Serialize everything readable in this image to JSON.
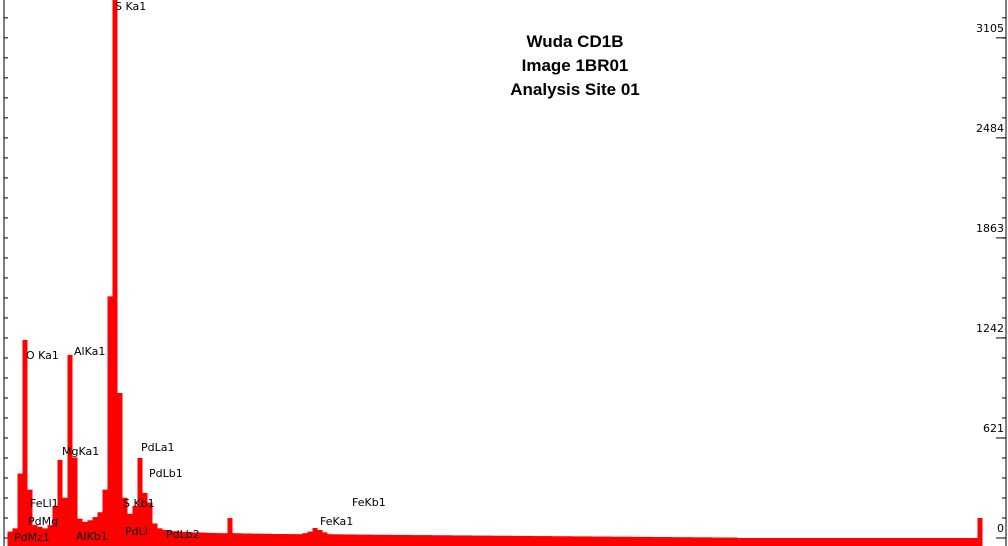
{
  "chart_data": {
    "type": "spectrum",
    "title_lines": [
      "Wuda CD1B",
      "Image 1BR01",
      "Analysis Site 01"
    ],
    "color": "#ff0000",
    "values": [
      40,
      60,
      400,
      1230,
      300,
      80,
      70,
      60,
      80,
      200,
      485,
      250,
      1137,
      500,
      120,
      100,
      110,
      130,
      160,
      300,
      1500,
      3340,
      900,
      250,
      150,
      200,
      497,
      280,
      220,
      90,
      60,
      50,
      45,
      42,
      40,
      38,
      36,
      35,
      34,
      33,
      32,
      31,
      30,
      30,
      124,
      30,
      29,
      28,
      28,
      27,
      27,
      26,
      26,
      25,
      25,
      25,
      24,
      24,
      24,
      30,
      40,
      62,
      50,
      35,
      24,
      23,
      23,
      22,
      22,
      22,
      21,
      21,
      21,
      20,
      20,
      20,
      20,
      19,
      19,
      19,
      19,
      18,
      18,
      18,
      18,
      17,
      17,
      17,
      17,
      16,
      16,
      16,
      16,
      15,
      15,
      15,
      15,
      14,
      14,
      14,
      14,
      13,
      13,
      13,
      13,
      12,
      12,
      12,
      12,
      11,
      11,
      11,
      11,
      10,
      10,
      10,
      10,
      9,
      9,
      9,
      9,
      8,
      8,
      8,
      8,
      7,
      7,
      7,
      7,
      6,
      6,
      6,
      6,
      5,
      5,
      5,
      5,
      4,
      4,
      4,
      4,
      3,
      3,
      3,
      3,
      3,
      0,
      0,
      0,
      0,
      0,
      0,
      0,
      0,
      0,
      0,
      0,
      0,
      0,
      0,
      0,
      0,
      0,
      0,
      0,
      0,
      0,
      0,
      0,
      0,
      0,
      0,
      0,
      0,
      0,
      0,
      0,
      0,
      0,
      0,
      0,
      0,
      0,
      0,
      0,
      0,
      0,
      0,
      0,
      0,
      0,
      0,
      0,
      0,
      124
    ],
    "peak_labels": [
      "S Ka1",
      "O Ka1",
      "AlKa1",
      "MgKa1",
      "PdLa1",
      "PdLb1",
      "FeKb1",
      "FeKa1",
      "FeLl1",
      "PdMg",
      "S Kb1",
      "AlKb1",
      "PdMz1",
      "PdLl",
      "PdLb2"
    ],
    "ylim": [
      0,
      3340
    ],
    "yticks": [
      0,
      621,
      1242,
      1863,
      2484,
      3105
    ]
  }
}
